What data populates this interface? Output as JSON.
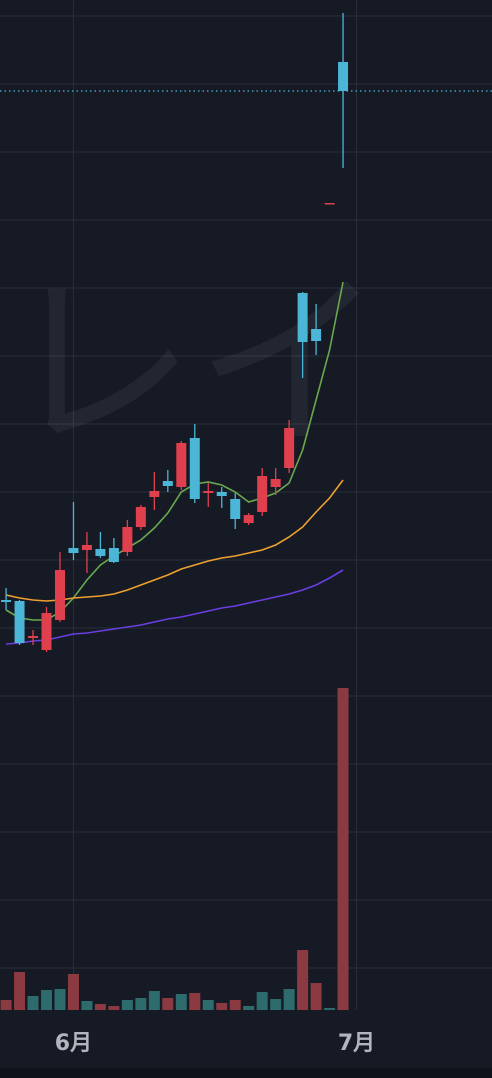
{
  "chart_data": {
    "type": "candlestick",
    "watermark": "レイ",
    "xlim": [
      -0.45,
      36.05
    ],
    "xticks": [
      {
        "value": 5,
        "label": "6月"
      },
      {
        "value": 26,
        "label": "7月"
      }
    ],
    "ylim": [
      0,
      1010
    ],
    "y2lim": [
      0,
      1010
    ],
    "up_color": "#e0404e",
    "down_color": "#4cb6d6",
    "last_price_line": true,
    "candles": {
      "open": [
        410,
        409,
        372,
        360,
        390,
        462,
        460,
        461,
        462,
        458,
        483,
        513,
        529,
        523,
        572,
        517,
        518,
        511,
        487,
        498,
        523,
        542,
        717,
        681,
        806,
        948
      ],
      "high": [
        422,
        410,
        380,
        403,
        458,
        508,
        478,
        478,
        472,
        490,
        505,
        538,
        540,
        569,
        586,
        527,
        523,
        517,
        497,
        542,
        542,
        590,
        718,
        706,
        807,
        997
      ],
      "low": [
        400,
        365,
        365,
        358,
        388,
        450,
        437,
        452,
        447,
        454,
        480,
        500,
        518,
        520,
        507,
        503,
        502,
        481,
        485,
        494,
        515,
        537,
        632,
        655,
        806,
        842
      ],
      "close": [
        408,
        367,
        374,
        397,
        440,
        457,
        465,
        454,
        448,
        483,
        503,
        519,
        524,
        567,
        511,
        519,
        514,
        491,
        495,
        534,
        531,
        582,
        668,
        669,
        807,
        919
      ]
    },
    "lines": [
      {
        "color": "#6aa84f",
        "values": [
          400,
          392,
          390,
          390,
          398,
          412,
          430,
          445,
          454,
          462,
          470,
          482,
          497,
          518,
          526,
          528,
          525,
          518,
          508,
          512,
          517,
          527,
          560,
          610,
          660,
          728
        ]
      },
      {
        "color": "#f0a030",
        "values": [
          415,
          412,
          410,
          409,
          410,
          412,
          413,
          414,
          416,
          420,
          425,
          430,
          435,
          441,
          445,
          449,
          452,
          454,
          457,
          460,
          465,
          473,
          483,
          498,
          512,
          530
        ]
      },
      {
        "color": "#6a3ee0",
        "values": [
          366,
          367,
          369,
          370,
          373,
          376,
          377,
          379,
          381,
          383,
          385,
          388,
          391,
          393,
          396,
          399,
          402,
          404,
          407,
          410,
          413,
          416,
          420,
          425,
          432,
          440
        ]
      }
    ],
    "volume": {
      "values": [
        10,
        38,
        14,
        20,
        21,
        36,
        9,
        6,
        4,
        10,
        12,
        19,
        12,
        16,
        17,
        10,
        7,
        10,
        4,
        18,
        11,
        21,
        60,
        27,
        2,
        322
      ],
      "colors": [
        "#8a3a40",
        "#8a3a40",
        "#2d6b6c",
        "#2d6b6c",
        "#2d6b6c",
        "#8a3a40",
        "#2d6b6c",
        "#8a3a40",
        "#8a3a40",
        "#2d6b6c",
        "#2d6b6c",
        "#2d6b6c",
        "#8a3a40",
        "#2d6b6c",
        "#8a3a40",
        "#2d6b6c",
        "#8a3a40",
        "#8a3a40",
        "#2d6b6c",
        "#2d6b6c",
        "#2d6b6c",
        "#2d6b6c",
        "#8a3a40",
        "#8a3a40",
        "#2d6b6c",
        "#8a3a40"
      ]
    }
  }
}
